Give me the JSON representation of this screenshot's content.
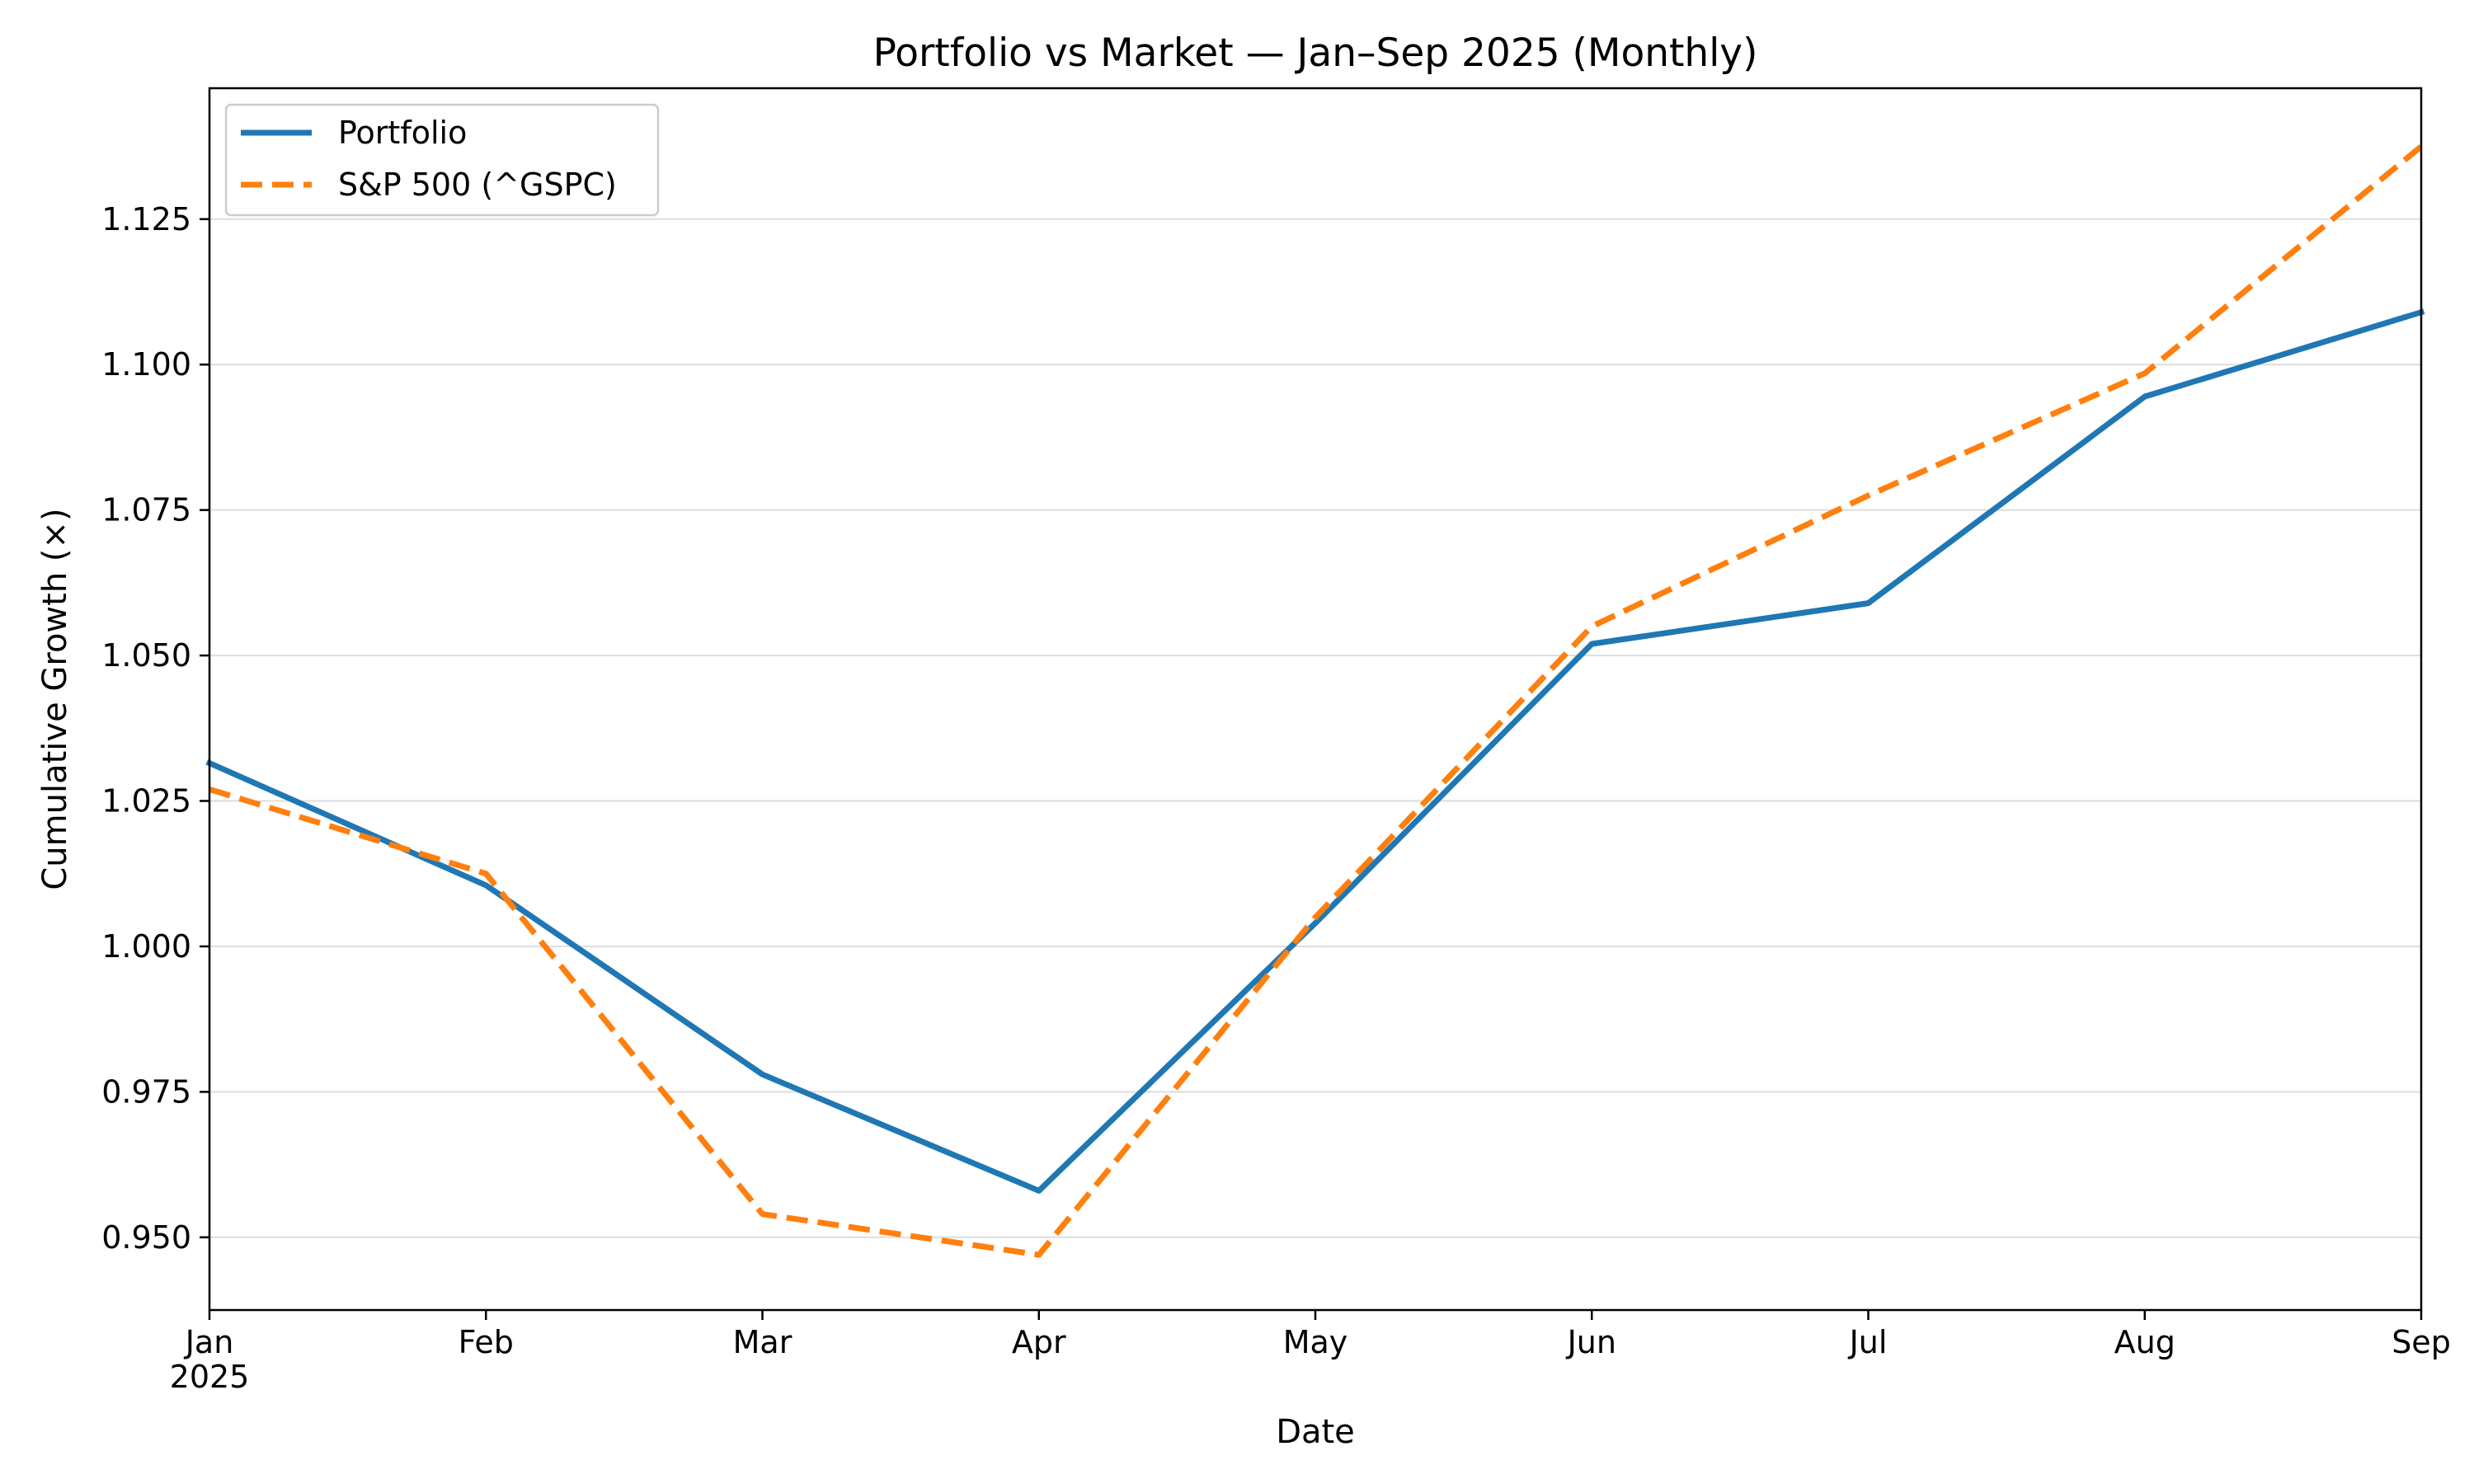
{
  "chart_data": {
    "type": "line",
    "title": "Portfolio vs Market — Jan–Sep 2025 (Monthly)",
    "xlabel": "Date",
    "ylabel": "Cumulative Growth (×)",
    "categories": [
      "Jan",
      "Feb",
      "Mar",
      "Apr",
      "May",
      "Jun",
      "Jul",
      "Aug",
      "Sep"
    ],
    "x_year_label": "2025",
    "yticks": [
      "0.950",
      "0.975",
      "1.000",
      "1.025",
      "1.050",
      "1.075",
      "1.100",
      "1.125"
    ],
    "ylim": [
      0.9375,
      1.1475
    ],
    "grid": "horizontal",
    "legend_position": "top-left",
    "series": [
      {
        "name": "Portfolio",
        "color": "#1f77b4",
        "style": "solid",
        "values": [
          1.0315,
          1.0105,
          0.978,
          0.958,
          1.004,
          1.052,
          1.059,
          1.0945,
          1.109
        ]
      },
      {
        "name": "S&P 500 (^GSPC)",
        "color": "#ff7f0e",
        "style": "dashed",
        "values": [
          1.027,
          1.0125,
          0.954,
          0.947,
          1.005,
          1.055,
          1.0775,
          1.0985,
          1.1375
        ]
      }
    ]
  }
}
